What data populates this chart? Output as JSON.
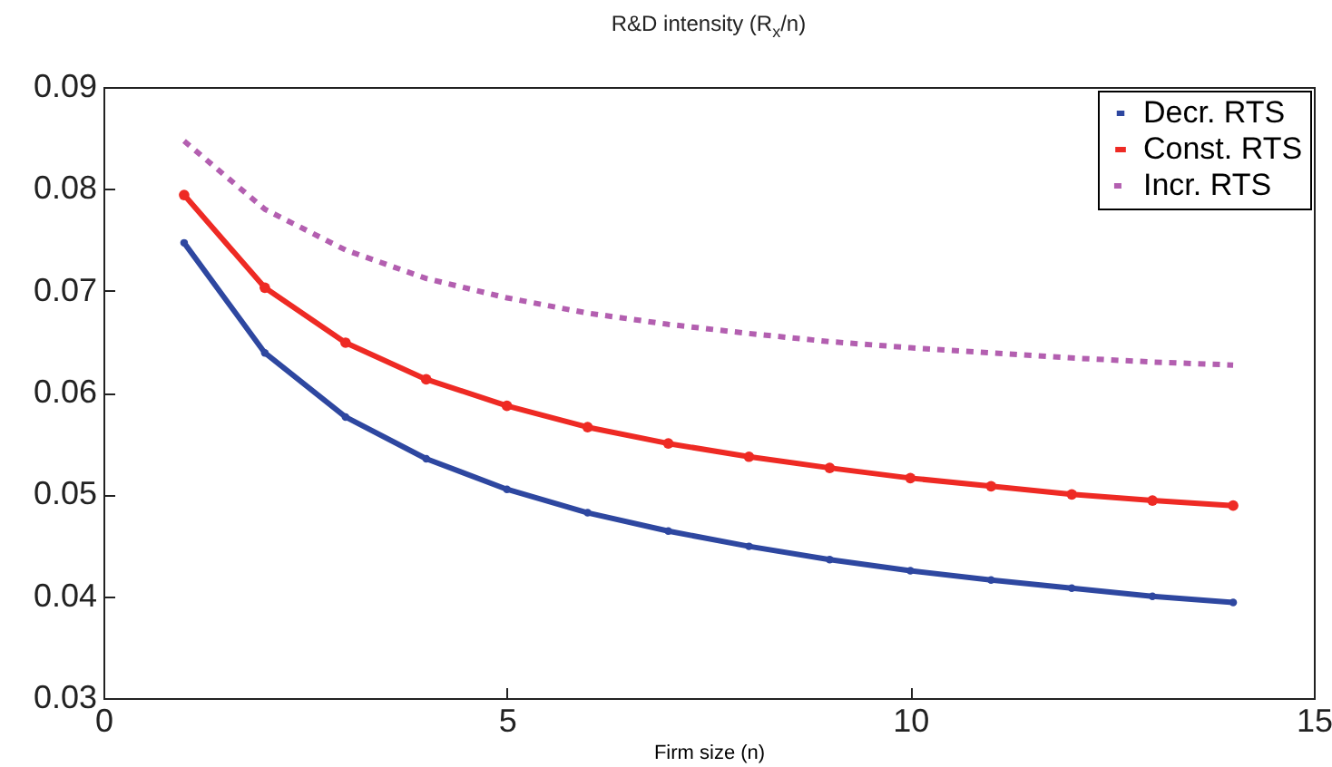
{
  "chart_data": {
    "type": "line",
    "title": "R&D intensity (R$_{x}$/n)",
    "xlabel": "Firm size (n)",
    "x": [
      1,
      2,
      3,
      4,
      5,
      6,
      7,
      8,
      9,
      10,
      11,
      12,
      13,
      14
    ],
    "xlim": [
      0,
      15
    ],
    "xticks": [
      0,
      5,
      10,
      15
    ],
    "ylim": [
      0.03,
      0.09
    ],
    "yticks": [
      0.03,
      0.04,
      0.05,
      0.06,
      0.07,
      0.08,
      0.09
    ],
    "grid": false,
    "legend": "top right",
    "series": [
      {
        "name": "Decr. RTS",
        "color": "#2e47a0",
        "marker": "circle",
        "line_style": "solid",
        "values": [
          0.0747,
          0.0639,
          0.0576,
          0.0535,
          0.0505,
          0.0482,
          0.0464,
          0.0449,
          0.0436,
          0.0425,
          0.0416,
          0.0408,
          0.04,
          0.0394
        ]
      },
      {
        "name": "Const. RTS",
        "color": "#ee2a24",
        "marker": "circle",
        "line_style": "solid",
        "values": [
          0.0794,
          0.0703,
          0.0649,
          0.0613,
          0.0587,
          0.0566,
          0.055,
          0.0537,
          0.0526,
          0.0516,
          0.0508,
          0.05,
          0.0494,
          0.0489
        ]
      },
      {
        "name": "Incr. RTS",
        "color": "#b35fb0",
        "marker": "none",
        "line_style": "dotted",
        "values": [
          0.0847,
          0.078,
          0.074,
          0.0712,
          0.0693,
          0.0678,
          0.0667,
          0.0658,
          0.065,
          0.0644,
          0.0639,
          0.0634,
          0.063,
          0.0627
        ]
      }
    ]
  }
}
